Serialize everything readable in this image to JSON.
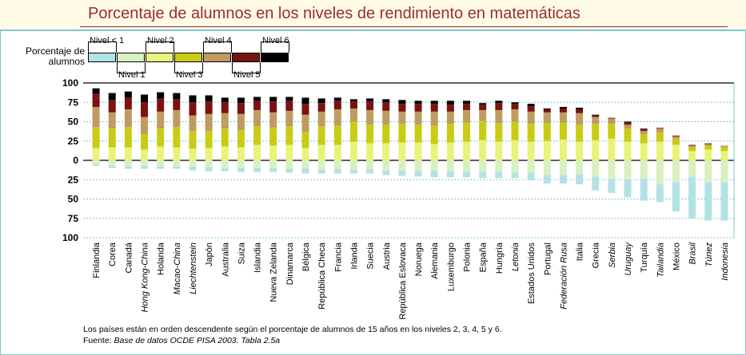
{
  "title": "Porcentaje de alumnos en los niveles de rendimiento en matemáticas",
  "legend": {
    "caption": "Porcentaje de alumnos",
    "levels": [
      {
        "label": "Nivel < 1",
        "color": "#b3e2e4"
      },
      {
        "label": "Nivel 1",
        "color": "#d9f0c2"
      },
      {
        "label": "Nivel 2",
        "color": "#e6f47a"
      },
      {
        "label": "Nivel 3",
        "color": "#c9cc15"
      },
      {
        "label": "Nivel 4",
        "color": "#bf9b62"
      },
      {
        "label": "Nivel 5",
        "color": "#7a1212"
      },
      {
        "label": "Nivel 6",
        "color": "#000000"
      }
    ]
  },
  "footnote": "Los países están en orden descendente según el porcentaje de alumnos de 15 años en los niveles 2, 3, 4, 5 y 6.",
  "source_label": "Fuente:",
  "source_ref": "Base de datos OCDE PISA 2003. Tabla 2.5a",
  "chart_data": {
    "type": "bar",
    "title": "Porcentaje de alumnos en los niveles de rendimiento en matemáticas",
    "ylabel": "",
    "ylim": [
      -100,
      100
    ],
    "y_tick_labels": [
      "100",
      "75",
      "50",
      "25",
      "0",
      "25",
      "50",
      "75",
      "100"
    ],
    "y_tick_values": [
      100,
      75,
      50,
      25,
      0,
      -25,
      -50,
      -75,
      -100
    ],
    "grid": true,
    "legend_position": "top-left",
    "categories": [
      "Finlandia",
      "Corea",
      "Canadá",
      "Hong Kong-China",
      "Holanda",
      "Macao-China",
      "Liechtenstein",
      "Japón",
      "Australia",
      "Suiza",
      "Islandia",
      "Nueva Zelanda",
      "Dinamarca",
      "Bélgica",
      "República Checa",
      "Francia",
      "Irlanda",
      "Suecia",
      "Austria",
      "República Eslovaca",
      "Noruega",
      "Alemania",
      "Luxemburgo",
      "Polonia",
      "España",
      "Hungría",
      "Letonia",
      "Estados Unidos",
      "Portugal",
      "Federación Rusa",
      "Italia",
      "Grecia",
      "Serbia",
      "Uruguay",
      "Turquía",
      "Tailandia",
      "México",
      "Brasil",
      "Túnez",
      "Indonesia"
    ],
    "italic_categories": [
      "Hong Kong-China",
      "Macao-China",
      "Liechtenstein",
      "Letonia",
      "Federación Rusa",
      "Serbia",
      "Uruguay",
      "Tailandia",
      "Brasil",
      "Túnez",
      "Indonesia"
    ],
    "series": [
      {
        "name": "Nivel < 1",
        "color": "#b3e2e4",
        "values": [
          -2,
          -3,
          -3,
          -4,
          -3,
          -3,
          -5,
          -5,
          -4,
          -5,
          -5,
          -5,
          -5,
          -7,
          -5,
          -6,
          -5,
          -6,
          -6,
          -7,
          -7,
          -9,
          -8,
          -7,
          -8,
          -8,
          -7,
          -10,
          -11,
          -11,
          -13,
          -18,
          -18,
          -23,
          -28,
          -23,
          -38,
          -54,
          -50,
          -50
        ]
      },
      {
        "name": "Nivel 1",
        "color": "#d9f0c2",
        "values": [
          -5,
          -7,
          -8,
          -7,
          -8,
          -8,
          -8,
          -9,
          -10,
          -10,
          -10,
          -10,
          -11,
          -10,
          -12,
          -11,
          -12,
          -11,
          -13,
          -13,
          -14,
          -13,
          -14,
          -15,
          -15,
          -15,
          -16,
          -16,
          -19,
          -19,
          -18,
          -21,
          -24,
          -25,
          -24,
          -31,
          -28,
          -21,
          -28,
          -28
        ]
      },
      {
        "name": "Nivel 2",
        "color": "#e6f47a",
        "values": [
          16,
          17,
          17,
          14,
          18,
          17,
          15,
          16,
          18,
          17,
          20,
          19,
          20,
          16,
          20,
          20,
          24,
          22,
          22,
          23,
          23,
          21,
          23,
          24,
          26,
          24,
          26,
          24,
          25,
          27,
          24,
          26,
          28,
          24,
          22,
          24,
          20,
          12,
          14,
          12
        ]
      },
      {
        "name": "Nivel 3",
        "color": "#c9cc15",
        "values": [
          27,
          24,
          26,
          20,
          23,
          26,
          23,
          22,
          23,
          22,
          24,
          23,
          24,
          21,
          24,
          25,
          26,
          24,
          24,
          24,
          23,
          24,
          24,
          25,
          25,
          24,
          24,
          23,
          23,
          22,
          22,
          21,
          19,
          17,
          12,
          12,
          8,
          5,
          5,
          5
        ]
      },
      {
        "name": "Nivel 4",
        "color": "#bf9b62",
        "values": [
          26,
          21,
          23,
          22,
          22,
          22,
          20,
          22,
          20,
          21,
          21,
          20,
          20,
          22,
          19,
          21,
          17,
          19,
          18,
          16,
          17,
          18,
          16,
          16,
          14,
          17,
          16,
          16,
          14,
          13,
          15,
          9,
          7,
          5,
          4,
          5,
          3,
          2,
          2,
          2
        ]
      },
      {
        "name": "Nivel 5",
        "color": "#7a1212",
        "values": [
          17,
          16,
          15,
          19,
          17,
          14,
          17,
          16,
          14,
          14,
          12,
          14,
          13,
          14,
          11,
          11,
          9,
          11,
          11,
          10,
          10,
          10,
          9,
          8,
          7,
          9,
          7,
          7,
          4,
          5,
          5,
          2,
          1,
          3,
          2,
          1,
          1,
          1,
          1,
          0
        ]
      },
      {
        "name": "Nivel 6",
        "color": "#000000",
        "values": [
          7,
          9,
          8,
          10,
          8,
          8,
          9,
          8,
          6,
          7,
          5,
          6,
          5,
          8,
          6,
          4,
          3,
          4,
          4,
          5,
          4,
          4,
          5,
          4,
          2,
          3,
          2,
          3,
          1,
          2,
          2,
          1,
          0,
          1,
          1,
          0,
          0,
          0,
          0,
          0
        ]
      }
    ]
  }
}
